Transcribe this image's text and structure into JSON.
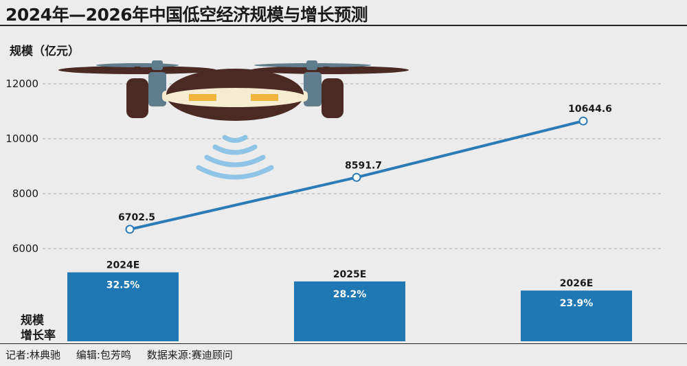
{
  "title": "2024年—2026年中国低空经济规模与增长预测",
  "y_axis_label": "规模（亿元）",
  "growth_axis_label_line1": "规模",
  "growth_axis_label_line2": "增长率",
  "footer": {
    "reporter": "记者:林典驰",
    "editor": "编辑:包芳鸣",
    "source": "数据来源:赛迪顾问"
  },
  "colors": {
    "line": "#2b7bb6",
    "bar": "#1f78b4",
    "grid": "#aaaaaa",
    "background": "#ececec"
  },
  "icons": [
    "drone-icon",
    "signal-waves-icon"
  ],
  "chart_data": [
    {
      "type": "line",
      "categories": [
        "2024E",
        "2025E",
        "2026E"
      ],
      "series": [
        {
          "values": [
            6702.5,
            8591.7,
            10644.6
          ]
        }
      ],
      "value_labels": [
        "6702.5",
        "8591.7",
        "10644.6"
      ],
      "ylabel": "规模（亿元）",
      "yticks": [
        6000,
        8000,
        10000,
        12000
      ],
      "ytick_labels": [
        "6000",
        "8000",
        "10000",
        "12000"
      ],
      "ylim": [
        5000,
        12500
      ],
      "grid": true
    },
    {
      "type": "bar",
      "categories": [
        "2024E",
        "2025E",
        "2026E"
      ],
      "values": [
        32.5,
        28.2,
        23.9
      ],
      "value_labels": [
        "32.5%",
        "28.2%",
        "23.9%"
      ],
      "ylabel": "规模增长率"
    }
  ]
}
